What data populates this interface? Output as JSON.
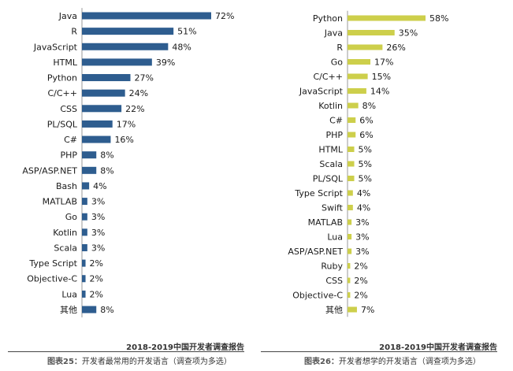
{
  "colors": {
    "left_bar": "#2e5d8f",
    "right_bar": "#cdcf4b"
  },
  "chart_data": [
    {
      "type": "bar",
      "orientation": "horizontal",
      "title": "开发者最常用的开发语言（调查项为多选）",
      "figure_label": "图表25：",
      "report": "2018-2019中国开发者调查报告",
      "xlim": [
        0,
        72
      ],
      "categories": [
        "Java",
        "R",
        "JavaScript",
        "HTML",
        "Python",
        "C/C++",
        "CSS",
        "PL/SQL",
        "C#",
        "PHP",
        "ASP/ASP.NET",
        "Bash",
        "MATLAB",
        "Go",
        "Kotlin",
        "Scala",
        "Type Script",
        "Objective-C",
        "Lua",
        "其他"
      ],
      "values": [
        72,
        51,
        48,
        39,
        27,
        24,
        22,
        17,
        16,
        8,
        8,
        4,
        3,
        3,
        3,
        3,
        2,
        2,
        2,
        8
      ],
      "labels": [
        "72%",
        "51%",
        "48%",
        "39%",
        "27%",
        "24%",
        "22%",
        "17%",
        "16%",
        "8%",
        "8%",
        "4%",
        "3%",
        "3%",
        "3%",
        "3%",
        "2%",
        "2%",
        "2%",
        "8%"
      ]
    },
    {
      "type": "bar",
      "orientation": "horizontal",
      "title": "开发者想学的开发语言（调查项为多选）",
      "figure_label": "图表26：",
      "report": "2018-2019中国开发者调查报告",
      "xlim": [
        0,
        58
      ],
      "categories": [
        "Python",
        "Java",
        "R",
        "Go",
        "C/C++",
        "JavaScript",
        "Kotlin",
        "C#",
        "PHP",
        "HTML",
        "Scala",
        "PL/SQL",
        "Type Script",
        "Swift",
        "MATLAB",
        "Lua",
        "ASP/ASP.NET",
        "Ruby",
        "CSS",
        "Objective-C",
        "其他"
      ],
      "values": [
        58,
        35,
        26,
        17,
        15,
        14,
        8,
        6,
        6,
        5,
        5,
        5,
        4,
        4,
        3,
        3,
        3,
        2,
        2,
        2,
        7
      ],
      "labels": [
        "58%",
        "35%",
        "26%",
        "17%",
        "15%",
        "14%",
        "8%",
        "6%",
        "6%",
        "5%",
        "5%",
        "5%",
        "4%",
        "4%",
        "3%",
        "3%",
        "3%",
        "2%",
        "2%",
        "2%",
        "7%"
      ]
    }
  ]
}
